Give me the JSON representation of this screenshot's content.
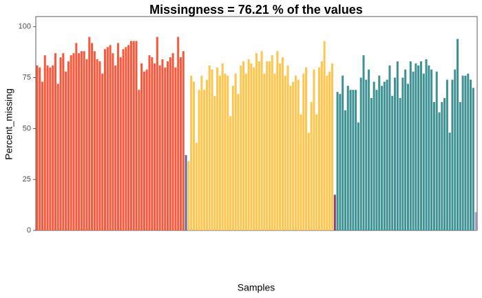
{
  "chart_data": {
    "type": "bar",
    "title": "Missingness =  76.21 % of the values",
    "x_label": "Samples",
    "y_label": "Percent_missing",
    "categories": [
      null,
      null,
      null,
      null,
      null,
      null,
      null,
      null,
      null,
      null,
      null,
      null,
      null,
      null,
      null,
      null,
      null,
      null,
      null,
      null,
      null,
      null,
      null,
      null,
      null,
      null,
      null,
      null,
      null,
      null,
      null,
      null,
      null,
      null,
      null,
      null,
      null,
      null,
      null,
      null,
      null,
      null,
      null,
      null,
      null,
      null,
      null,
      null,
      null,
      null,
      null,
      null,
      null,
      null,
      null,
      null,
      null,
      null,
      null,
      null,
      null,
      null,
      null,
      null,
      null,
      null,
      null,
      null,
      null,
      null,
      null,
      null,
      null,
      null,
      null,
      null,
      null,
      null,
      null,
      null,
      null,
      null,
      null,
      null,
      null,
      null,
      null,
      null,
      null,
      null,
      null,
      null,
      null,
      null,
      null,
      null,
      null,
      null,
      null,
      null,
      null,
      null,
      null,
      null,
      null,
      null,
      null,
      null,
      null,
      null,
      null,
      null,
      null,
      null,
      null,
      null,
      null,
      null,
      null,
      null,
      null,
      null,
      null,
      null,
      null,
      null,
      null,
      null,
      null,
      null,
      null,
      null,
      null,
      null,
      null,
      null,
      null,
      null,
      null,
      null,
      null,
      null,
      null,
      null,
      null,
      null,
      null,
      null,
      null,
      null,
      null,
      null,
      null,
      null,
      null,
      null,
      null,
      null,
      null,
      null,
      null,
      null,
      null,
      null,
      null,
      null,
      null,
      null,
      null
    ],
    "values": [
      81,
      80,
      73,
      86,
      81,
      80,
      81,
      87,
      72,
      85,
      87,
      78,
      83,
      86,
      87,
      92,
      87,
      88,
      88,
      84,
      95,
      92,
      88,
      84,
      83,
      77,
      89,
      90,
      91,
      87,
      81,
      92,
      85,
      89,
      90,
      91,
      93,
      93,
      93,
      69,
      82,
      78,
      79,
      86,
      85,
      82,
      95,
      81,
      84,
      80,
      83,
      85,
      87,
      80,
      95,
      85,
      88,
      37,
      34,
      76,
      73,
      43,
      69,
      76,
      69,
      74,
      81,
      79,
      66,
      80,
      76,
      82,
      77,
      76,
      56,
      71,
      77,
      67,
      81,
      83,
      77,
      84,
      82,
      80,
      87,
      83,
      88,
      77,
      83,
      83,
      86,
      77,
      88,
      82,
      85,
      76,
      81,
      71,
      73,
      76,
      74,
      57,
      77,
      80,
      48,
      63,
      79,
      57,
      80,
      83,
      93,
      76,
      78,
      82,
      17.5,
      68,
      67,
      76,
      59,
      71,
      69,
      69,
      69,
      53,
      75,
      86,
      74,
      79,
      65,
      73,
      69,
      76,
      71,
      73,
      74,
      81,
      66,
      75,
      83,
      65,
      75,
      79,
      72,
      83,
      78,
      82,
      81,
      83,
      77,
      84,
      81,
      79,
      63,
      78,
      58,
      63,
      65,
      74,
      48,
      74,
      79,
      94,
      63,
      76,
      76,
      77,
      74,
      70,
      9
    ],
    "colors": [
      "#fc573b",
      "#fc573b",
      "#fc573b",
      "#fc573b",
      "#fc573b",
      "#fc573b",
      "#fc573b",
      "#fc573b",
      "#fc573b",
      "#fc573b",
      "#fc573b",
      "#fc573b",
      "#fc573b",
      "#fc573b",
      "#fc573b",
      "#fc573b",
      "#fc573b",
      "#fc573b",
      "#fc573b",
      "#fc573b",
      "#fc573b",
      "#fc573b",
      "#fc573b",
      "#fc573b",
      "#fc573b",
      "#fc573b",
      "#fc573b",
      "#fc573b",
      "#fc573b",
      "#fc573b",
      "#fc573b",
      "#fc573b",
      "#fc573b",
      "#fc573b",
      "#fc573b",
      "#fc573b",
      "#fc573b",
      "#fc573b",
      "#fc573b",
      "#fc573b",
      "#fc573b",
      "#fc573b",
      "#fc573b",
      "#fc573b",
      "#fc573b",
      "#fc573b",
      "#fc573b",
      "#fc573b",
      "#fc573b",
      "#fc573b",
      "#fc573b",
      "#fc573b",
      "#fc573b",
      "#fc573b",
      "#fc573b",
      "#fc573b",
      "#fc573b",
      "#5a6fa3",
      "#ffc54d",
      "#ffc54d",
      "#ffc54d",
      "#ffc54d",
      "#ffc54d",
      "#ffc54d",
      "#ffc54d",
      "#ffc54d",
      "#ffc54d",
      "#ffc54d",
      "#ffc54d",
      "#ffc54d",
      "#ffc54d",
      "#ffc54d",
      "#ffc54d",
      "#ffc54d",
      "#ffc54d",
      "#ffc54d",
      "#ffc54d",
      "#ffc54d",
      "#ffc54d",
      "#ffc54d",
      "#ffc54d",
      "#ffc54d",
      "#ffc54d",
      "#ffc54d",
      "#ffc54d",
      "#ffc54d",
      "#ffc54d",
      "#ffc54d",
      "#ffc54d",
      "#ffc54d",
      "#ffc54d",
      "#ffc54d",
      "#ffc54d",
      "#ffc54d",
      "#ffc54d",
      "#ffc54d",
      "#ffc54d",
      "#ffc54d",
      "#ffc54d",
      "#ffc54d",
      "#ffc54d",
      "#ffc54d",
      "#ffc54d",
      "#ffc54d",
      "#ffc54d",
      "#ffc54d",
      "#ffc54d",
      "#ffc54d",
      "#ffc54d",
      "#ffc54d",
      "#ffc54d",
      "#ffc54d",
      "#ffc54d",
      "#ffc54d",
      "#8e3b6e",
      "#3f9294",
      "#3f9294",
      "#3f9294",
      "#3f9294",
      "#3f9294",
      "#3f9294",
      "#3f9294",
      "#3f9294",
      "#3f9294",
      "#3f9294",
      "#3f9294",
      "#3f9294",
      "#3f9294",
      "#3f9294",
      "#3f9294",
      "#3f9294",
      "#3f9294",
      "#3f9294",
      "#3f9294",
      "#3f9294",
      "#3f9294",
      "#3f9294",
      "#3f9294",
      "#3f9294",
      "#3f9294",
      "#3f9294",
      "#3f9294",
      "#3f9294",
      "#3f9294",
      "#3f9294",
      "#3f9294",
      "#3f9294",
      "#3f9294",
      "#3f9294",
      "#3f9294",
      "#3f9294",
      "#3f9294",
      "#3f9294",
      "#3f9294",
      "#3f9294",
      "#3f9294",
      "#3f9294",
      "#3f9294",
      "#3f9294",
      "#3f9294",
      "#3f9294",
      "#3f9294",
      "#3f9294",
      "#3f9294",
      "#3f9294",
      "#3f9294",
      "#3f9294",
      "#3f9294",
      "#b59ccf"
    ],
    "ylim": [
      0,
      105
    ],
    "yticks": [
      0,
      25,
      50,
      75,
      100
    ],
    "grid": false
  }
}
